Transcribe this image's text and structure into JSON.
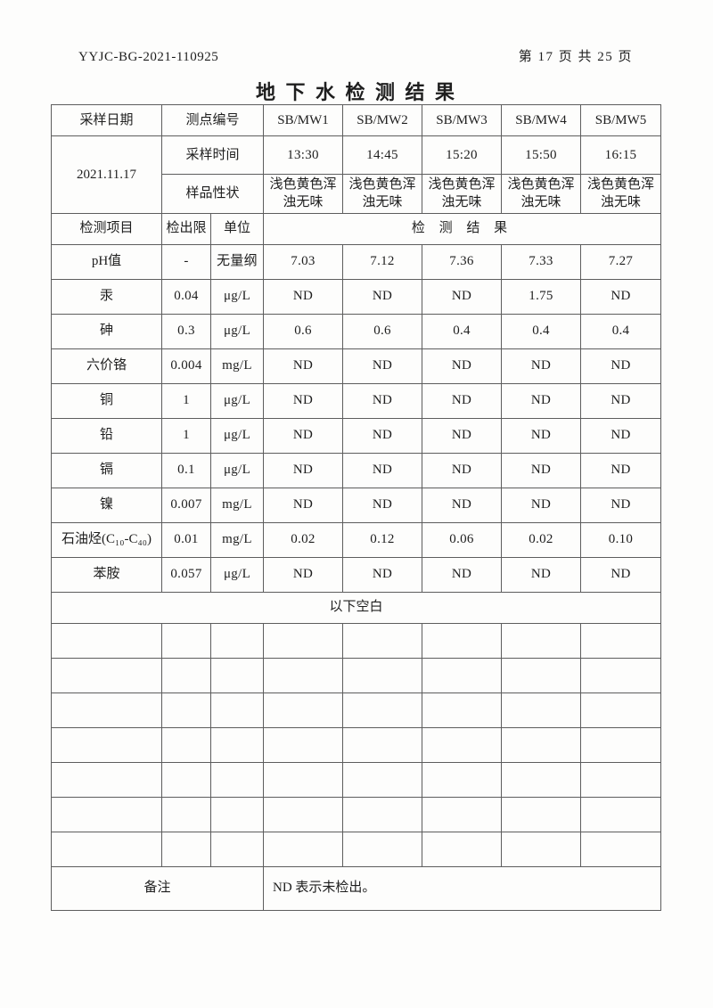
{
  "page": {
    "doc_number": "YYJC-BG-2021-110925",
    "page_indicator": "第 17 页 共 25 页",
    "title": "地 下 水 检 测 结 果"
  },
  "table": {
    "header": {
      "sampling_date_label": "采样日期",
      "sampling_date_value": "2021.11.17",
      "point_id_label": "测点编号",
      "point_ids": [
        "SB/MW1",
        "SB/MW2",
        "SB/MW3",
        "SB/MW4",
        "SB/MW5"
      ],
      "sampling_time_label": "采样时间",
      "sampling_times": [
        "13:30",
        "14:45",
        "15:20",
        "15:50",
        "16:15"
      ],
      "sample_character_label": "样品性状",
      "sample_characters": [
        "浅色黄色浑浊无味",
        "浅色黄色浑浊无味",
        "浅色黄色浑浊无味",
        "浅色黄色浑浊无味",
        "浅色黄色浑浊无味"
      ],
      "item_label": "检测项目",
      "detection_limit_label": "检出限",
      "unit_label": "单位",
      "result_label": "检 测 结 果"
    },
    "rows": [
      {
        "item": "pH值",
        "limit": "-",
        "unit": "无量纲",
        "values": [
          "7.03",
          "7.12",
          "7.36",
          "7.33",
          "7.27"
        ]
      },
      {
        "item": "汞",
        "limit": "0.04",
        "unit": "μg/L",
        "values": [
          "ND",
          "ND",
          "ND",
          "1.75",
          "ND"
        ]
      },
      {
        "item": "砷",
        "limit": "0.3",
        "unit": "μg/L",
        "values": [
          "0.6",
          "0.6",
          "0.4",
          "0.4",
          "0.4"
        ]
      },
      {
        "item": "六价铬",
        "limit": "0.004",
        "unit": "mg/L",
        "values": [
          "ND",
          "ND",
          "ND",
          "ND",
          "ND"
        ]
      },
      {
        "item": "铜",
        "limit": "1",
        "unit": "μg/L",
        "values": [
          "ND",
          "ND",
          "ND",
          "ND",
          "ND"
        ]
      },
      {
        "item": "铅",
        "limit": "1",
        "unit": "μg/L",
        "values": [
          "ND",
          "ND",
          "ND",
          "ND",
          "ND"
        ]
      },
      {
        "item": "镉",
        "limit": "0.1",
        "unit": "μg/L",
        "values": [
          "ND",
          "ND",
          "ND",
          "ND",
          "ND"
        ]
      },
      {
        "item": "镍",
        "limit": "0.007",
        "unit": "mg/L",
        "values": [
          "ND",
          "ND",
          "ND",
          "ND",
          "ND"
        ]
      },
      {
        "item": "石油烃(C₁₀-C₄₀)",
        "limit": "0.01",
        "unit": "mg/L",
        "values": [
          "0.02",
          "0.12",
          "0.06",
          "0.02",
          "0.10"
        ]
      },
      {
        "item": "苯胺",
        "limit": "0.057",
        "unit": "μg/L",
        "values": [
          "ND",
          "ND",
          "ND",
          "ND",
          "ND"
        ]
      }
    ],
    "blank_note": "以下空白",
    "empty_row_count": 7,
    "remark_label": "备注",
    "remark_text": "ND 表示未检出。"
  }
}
